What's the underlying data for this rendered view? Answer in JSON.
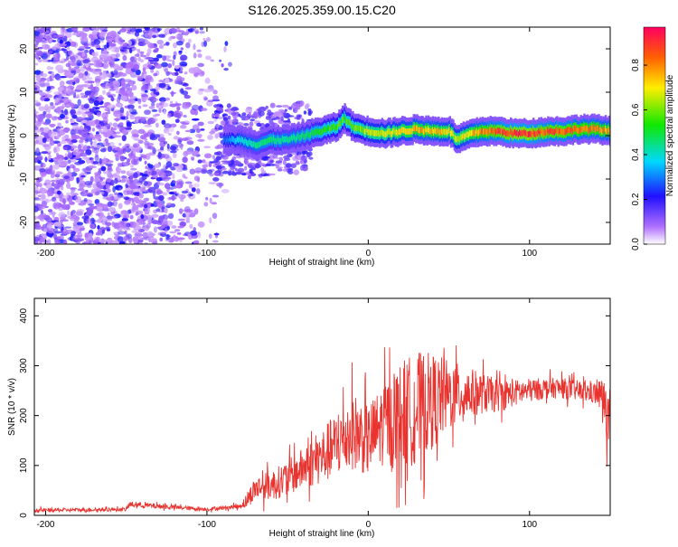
{
  "title": "S126.2025.359.00.15.C20",
  "chart_data": [
    {
      "type": "heatmap",
      "xlabel": "Height of straight line (km)",
      "ylabel": "Frequency (Hz)",
      "xlim": [
        -207,
        150
      ],
      "ylim": [
        -25,
        25
      ],
      "xticks": [
        "-200",
        "-100",
        "0",
        "100"
      ],
      "xtick_values": [
        -200,
        -100,
        0,
        100
      ],
      "yticks": [
        "-20",
        "-10",
        "0",
        "10",
        "20"
      ],
      "ytick_values": [
        -20,
        -10,
        0,
        10,
        20
      ],
      "colorbar": {
        "label": "Normalized spectral amplitude",
        "range": [
          0,
          0.97
        ],
        "ticks": [
          "0.0",
          "0.2",
          "0.4",
          "0.6",
          "0.8"
        ],
        "tick_values": [
          0.0,
          0.2,
          0.4,
          0.6,
          0.8
        ]
      },
      "ridge": {
        "x": [
          -90,
          -80,
          -70,
          -60,
          -50,
          -40,
          -30,
          -20,
          -15,
          -10,
          0,
          10,
          20,
          30,
          40,
          50,
          55,
          60,
          70,
          80,
          90,
          100,
          110,
          120,
          130,
          140,
          150
        ],
        "freq": [
          -1,
          -1,
          -2,
          -1,
          -1,
          0,
          1,
          2,
          4,
          2,
          1,
          0.5,
          1,
          1.5,
          1,
          1,
          -1,
          0,
          1,
          1,
          0.5,
          0.5,
          1,
          1,
          1.5,
          1.5,
          1
        ],
        "amplitude": [
          0.3,
          0.4,
          0.45,
          0.5,
          0.45,
          0.5,
          0.55,
          0.6,
          0.6,
          0.6,
          0.7,
          0.7,
          0.75,
          0.8,
          0.8,
          0.75,
          0.7,
          0.75,
          0.85,
          0.9,
          0.95,
          0.95,
          0.9,
          0.9,
          0.85,
          0.85,
          0.8
        ]
      },
      "noise_region_x": [
        -207,
        -85
      ]
    },
    {
      "type": "line",
      "xlabel": "Height of straight line (km)",
      "ylabel": "SNR (10 * v/v)",
      "xlim": [
        -207,
        150
      ],
      "ylim": [
        0,
        435
      ],
      "xticks": [
        "-200",
        "-100",
        "0",
        "100"
      ],
      "xtick_values": [
        -200,
        -100,
        0,
        100
      ],
      "yticks": [
        "0",
        "100",
        "200",
        "300",
        "400"
      ],
      "ytick_values": [
        0,
        100,
        200,
        300,
        400
      ],
      "series": [
        {
          "name": "SNR",
          "color": "#e8332f",
          "envelope_x": [
            -207,
            -150,
            -148,
            -100,
            -80,
            -75,
            -70,
            -60,
            -50,
            -40,
            -30,
            -20,
            -10,
            0,
            10,
            20,
            30,
            40,
            50,
            60,
            70,
            80,
            90,
            100,
            110,
            120,
            130,
            140,
            145,
            150
          ],
          "envelope_mean": [
            10,
            12,
            22,
            12,
            18,
            30,
            55,
            60,
            75,
            95,
            115,
            140,
            170,
            150,
            185,
            200,
            215,
            230,
            240,
            245,
            245,
            240,
            245,
            250,
            255,
            255,
            250,
            245,
            240,
            180
          ],
          "envelope_spread": [
            6,
            6,
            10,
            6,
            8,
            25,
            40,
            50,
            60,
            70,
            90,
            110,
            130,
            120,
            140,
            180,
            190,
            160,
            120,
            90,
            70,
            55,
            45,
            40,
            35,
            35,
            35,
            35,
            60,
            120
          ]
        }
      ]
    }
  ]
}
